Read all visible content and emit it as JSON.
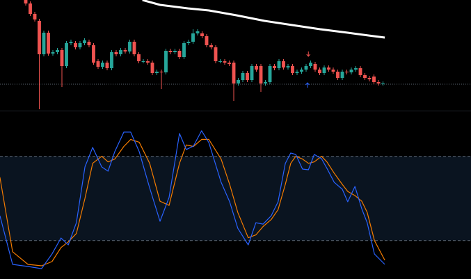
{
  "chart_data": [
    {
      "type": "candlestick",
      "xlim": [
        -5.69,
        98.46
      ],
      "ylim": [
        0,
        160
      ],
      "up_color": "#26a69a",
      "down_color": "#ef5350",
      "open": [
        160,
        155,
        140,
        130,
        82,
        113,
        83,
        85,
        88,
        65,
        98,
        98,
        92,
        98,
        100,
        95,
        72,
        64,
        70,
        62,
        85,
        82,
        88,
        86,
        100,
        82,
        72,
        72,
        70,
        55,
        57,
        56,
        87,
        85,
        87,
        78,
        98,
        100,
        112,
        112,
        108,
        95,
        92,
        72,
        72,
        70,
        70,
        40,
        45,
        55,
        45,
        65,
        65,
        40,
        42,
        65,
        62,
        72,
        63,
        65,
        55,
        57,
        60,
        65,
        68,
        60,
        55,
        63,
        60,
        57,
        48,
        57,
        56,
        60,
        62,
        52,
        48,
        50,
        42,
        40
      ],
      "high": [
        163,
        158,
        143,
        133,
        116,
        116,
        88,
        91,
        91,
        101,
        103,
        101,
        101,
        105,
        103,
        98,
        75,
        73,
        73,
        88,
        88,
        91,
        91,
        103,
        103,
        85,
        75,
        75,
        73,
        60,
        60,
        90,
        90,
        90,
        90,
        101,
        103,
        118,
        118,
        115,
        111,
        98,
        95,
        75,
        75,
        73,
        73,
        48,
        58,
        58,
        68,
        68,
        68,
        45,
        68,
        68,
        75,
        75,
        68,
        68,
        60,
        63,
        68,
        73,
        71,
        63,
        66,
        66,
        63,
        60,
        60,
        60,
        63,
        65,
        65,
        55,
        51,
        53,
        45,
        43
      ],
      "low": [
        152,
        137,
        129,
        3,
        79,
        80,
        80,
        82,
        35,
        62,
        95,
        89,
        89,
        95,
        92,
        67,
        61,
        61,
        59,
        59,
        79,
        79,
        83,
        83,
        79,
        69,
        69,
        67,
        52,
        52,
        32,
        53,
        82,
        82,
        75,
        75,
        95,
        97,
        109,
        105,
        92,
        89,
        69,
        69,
        67,
        65,
        15,
        37,
        42,
        42,
        42,
        57,
        28,
        37,
        39,
        59,
        59,
        60,
        60,
        52,
        52,
        54,
        57,
        62,
        57,
        52,
        52,
        57,
        54,
        45,
        45,
        53,
        53,
        57,
        49,
        45,
        43,
        39,
        37,
        37
      ],
      "close": [
        155,
        140,
        132,
        82,
        113,
        83,
        85,
        88,
        65,
        98,
        100,
        92,
        98,
        102,
        95,
        70,
        64,
        70,
        62,
        85,
        82,
        88,
        86,
        100,
        82,
        72,
        72,
        70,
        55,
        57,
        56,
        87,
        85,
        87,
        78,
        98,
        100,
        112,
        115,
        108,
        95,
        92,
        72,
        72,
        70,
        68,
        40,
        45,
        55,
        45,
        65,
        60,
        40,
        42,
        65,
        62,
        72,
        63,
        65,
        55,
        57,
        60,
        65,
        70,
        60,
        55,
        63,
        60,
        57,
        48,
        57,
        56,
        60,
        62,
        52,
        48,
        46,
        42,
        40,
        40
      ],
      "moving_average": {
        "color": "#ffffff",
        "x": [
          25.8,
          29.7,
          35.8,
          40.5,
          46.6,
          52.8,
          58.9,
          65.1,
          71.2,
          75.8,
          79.4
        ],
        "values": [
          160,
          153,
          148,
          145,
          138,
          130,
          124,
          118,
          113,
          109,
          106
        ]
      },
      "reference_line": {
        "value": 39,
        "color": "#5a6470"
      },
      "markers": [
        {
          "x": 62.5,
          "value": 82,
          "direction": "down",
          "color": "#ef5350"
        },
        {
          "x": 62.3,
          "value": 38,
          "direction": "up",
          "color": "#2962ff"
        }
      ]
    },
    {
      "type": "line",
      "xlim": [
        -5.69,
        98.46
      ],
      "ylim": [
        -7.4,
        112
      ],
      "levels": [
        20,
        80
      ],
      "band_color": "#0a1420",
      "x": [
        -5.7,
        -2.9,
        0.5,
        3.5,
        5.8,
        7.8,
        9.4,
        11.2,
        13.1,
        14.8,
        16.8,
        18.2,
        19.7,
        21.7,
        23.2,
        25.1,
        27.4,
        29.7,
        31.7,
        34,
        35.5,
        37.1,
        38.9,
        40.5,
        43.2,
        45.1,
        46.9,
        49.2,
        50.9,
        52.5,
        54.3,
        55.8,
        57.4,
        58.6,
        59.7,
        61.2,
        62.5,
        63.8,
        65.4,
        66.6,
        68.2,
        70,
        71.2,
        72.8,
        74.3,
        75.5,
        77.1,
        79.4
      ],
      "series": [
        {
          "color": "#f57c00",
          "values": [
            65,
            12,
            3,
            2,
            5,
            15,
            19,
            25,
            50,
            75,
            80,
            76,
            78,
            87,
            92,
            90,
            75,
            48,
            45,
            75,
            88,
            87,
            92,
            92,
            78,
            60,
            40,
            22,
            24,
            30,
            35,
            42,
            60,
            75,
            80,
            78,
            75,
            76,
            80,
            76,
            68,
            60,
            55,
            52,
            48,
            40,
            20,
            6
          ]
        },
        {
          "color": "#2962ff",
          "values": [
            37.7,
            3,
            1.5,
            0,
            10.4,
            21.8,
            16.9,
            32.7,
            72.4,
            86.3,
            72.4,
            69.4,
            83.3,
            97.2,
            97.2,
            83.3,
            57.5,
            33.7,
            50.6,
            96.2,
            84.8,
            87.3,
            98.2,
            89.7,
            61.5,
            47.6,
            28.7,
            16.9,
            32.7,
            31.7,
            37.7,
            47.6,
            74.9,
            82.3,
            81.3,
            70.9,
            70.4,
            81.3,
            78.3,
            71.4,
            61.5,
            56.5,
            47.6,
            58.5,
            42.6,
            32.7,
            10.4,
            3
          ]
        }
      ]
    }
  ]
}
